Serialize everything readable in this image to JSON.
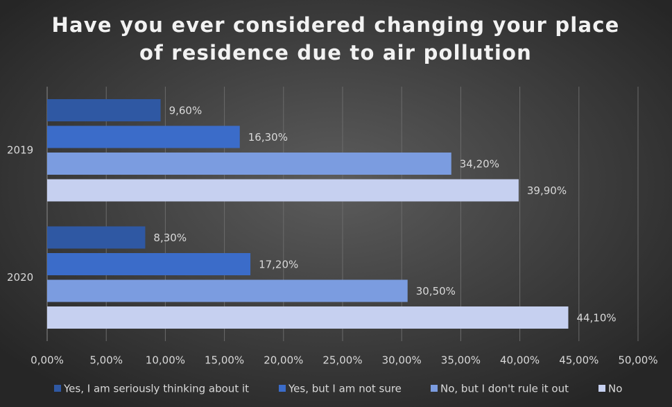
{
  "chart_data": {
    "type": "barh",
    "title": [
      "Have you ever considered changing your place",
      "of residence due to air pollution"
    ],
    "categories": [
      "2019",
      "2020"
    ],
    "series": [
      {
        "name": "Yes, I am seriously thinking about it",
        "color": "#2f58a3",
        "values": [
          9.6,
          8.3
        ],
        "value_labels": [
          "9,60%",
          "8,30%"
        ]
      },
      {
        "name": "Yes, but I am not sure",
        "color": "#3b6cc9",
        "values": [
          16.3,
          17.2
        ],
        "value_labels": [
          "16,30%",
          "17,20%"
        ]
      },
      {
        "name": "No, but I don't rule it out",
        "color": "#7b9ce0",
        "values": [
          34.2,
          30.5
        ],
        "value_labels": [
          "34,20%",
          "30,50%"
        ]
      },
      {
        "name": "No",
        "color": "#c6d0f0",
        "values": [
          39.9,
          44.1
        ],
        "value_labels": [
          "39,90%",
          "44,10%"
        ]
      }
    ],
    "xlim": [
      0,
      50
    ],
    "xticks": [
      {
        "value": 0,
        "label": "0,00%"
      },
      {
        "value": 5,
        "label": "5,00%"
      },
      {
        "value": 10,
        "label": "10,00%"
      },
      {
        "value": 15,
        "label": "15,00%"
      },
      {
        "value": 20,
        "label": "20,00%"
      },
      {
        "value": 25,
        "label": "25,00%"
      },
      {
        "value": 30,
        "label": "30,00%"
      },
      {
        "value": 35,
        "label": "35,00%"
      },
      {
        "value": 40,
        "label": "40,00%"
      },
      {
        "value": 45,
        "label": "45,00%"
      },
      {
        "value": 50,
        "label": "50,00%"
      }
    ],
    "grid": true
  }
}
